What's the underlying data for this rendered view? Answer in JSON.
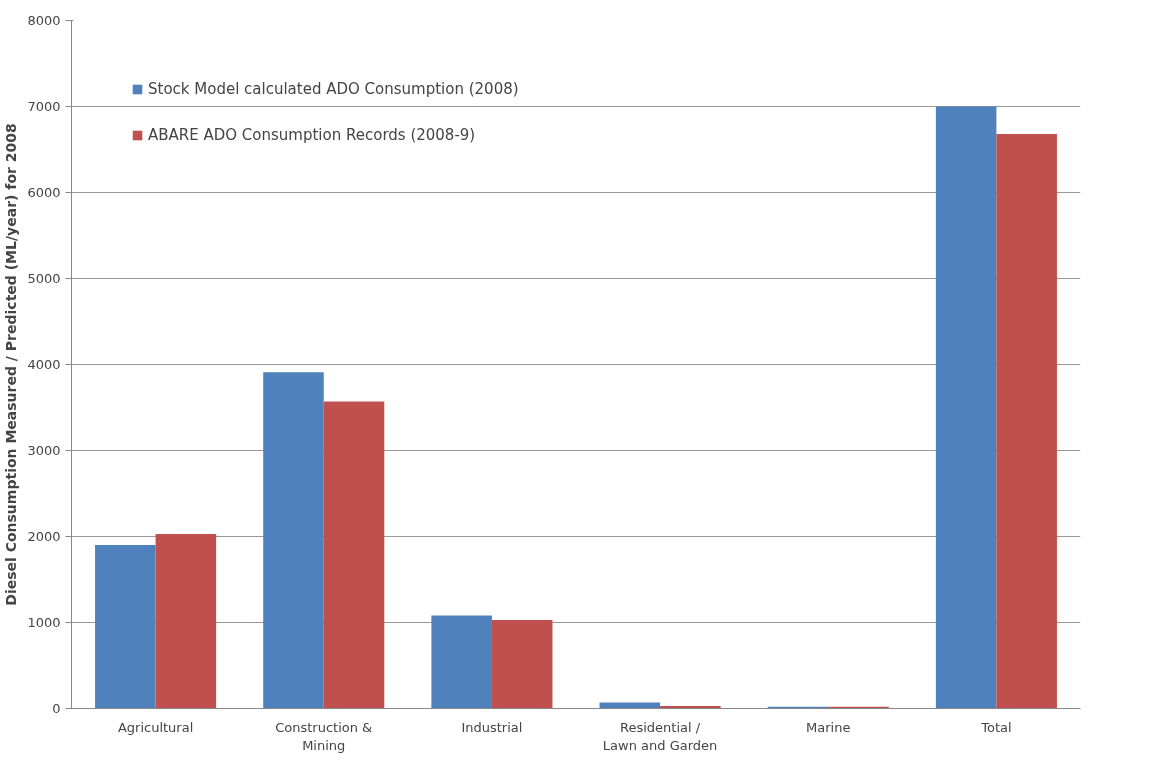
{
  "chart_data": {
    "type": "bar",
    "ylabel": "Diesel Consumption Measured / Predicted (ML/year) for 2008",
    "categories": [
      "Agricultural",
      "Construction & Mining",
      "Industrial",
      "Residential / Lawn and Garden",
      "Marine",
      "Total"
    ],
    "series": [
      {
        "name": "Stock Model calculated ADO Consumption (2008)",
        "color": "#4f81bd",
        "values": [
          1900,
          3910,
          1080,
          70,
          20,
          7000
        ]
      },
      {
        "name": "ABARE ADO Consumption Records (2008-9)",
        "color": "#c0504d",
        "values": [
          2030,
          3570,
          1030,
          30,
          20,
          6680
        ]
      }
    ],
    "ylim": [
      0,
      8000
    ],
    "yticks": [
      0,
      1000,
      2000,
      3000,
      4000,
      5000,
      6000,
      7000,
      8000
    ],
    "grid": "y",
    "legend": "top left"
  }
}
